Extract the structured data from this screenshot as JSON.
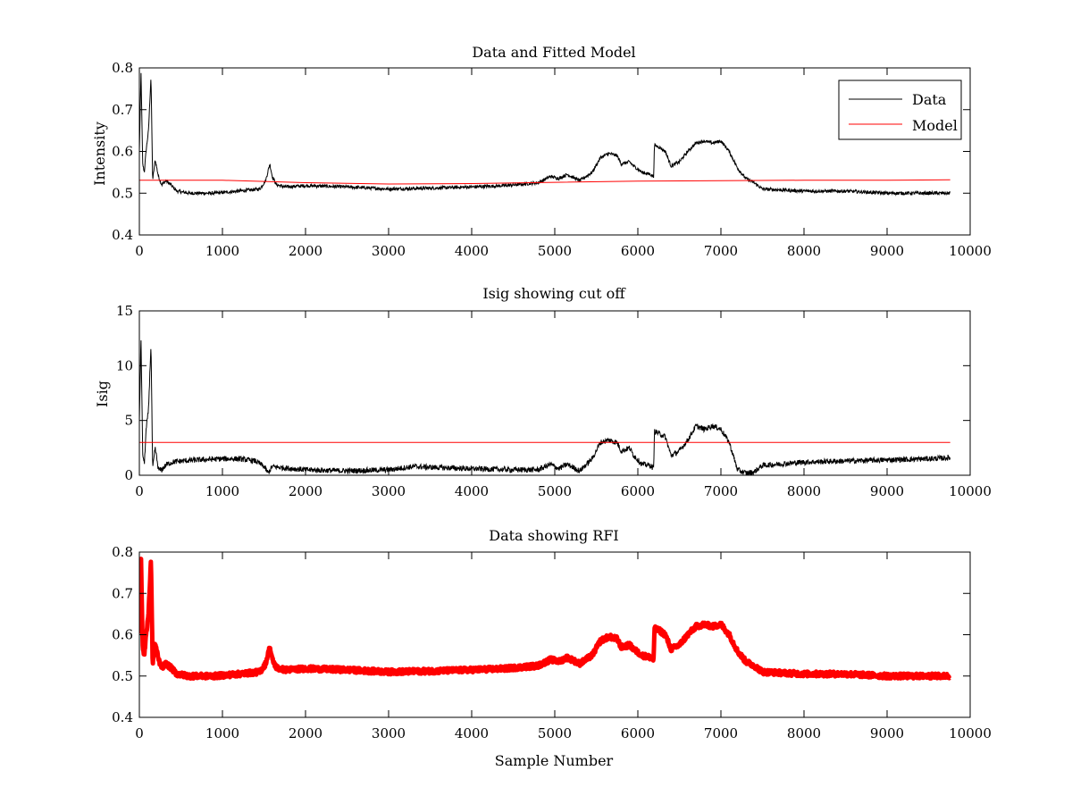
{
  "chart_data": [
    {
      "type": "line",
      "title": "Data and Fitted Model",
      "xlabel": "",
      "ylabel": "Intensity",
      "xlim": [
        0,
        10000
      ],
      "ylim": [
        0.4,
        0.8
      ],
      "xticks": [
        0,
        1000,
        2000,
        3000,
        4000,
        5000,
        6000,
        7000,
        8000,
        9000,
        10000
      ],
      "yticks": [
        0.4,
        0.5,
        0.6,
        0.7,
        0.8
      ],
      "ytick_labels": [
        "0.4",
        "0.5",
        "0.6",
        "0.7",
        "0.8"
      ],
      "legend": {
        "position": "top-right",
        "entries": [
          "Data",
          "Model"
        ]
      },
      "series": [
        {
          "name": "Data",
          "color": "#000000",
          "noise": 0.004,
          "x": [
            0,
            20,
            40,
            60,
            80,
            110,
            140,
            160,
            190,
            230,
            270,
            320,
            380,
            450,
            600,
            900,
            1200,
            1450,
            1520,
            1570,
            1600,
            1650,
            1750,
            2000,
            2500,
            3000,
            3500,
            4000,
            4400,
            4800,
            4950,
            5050,
            5150,
            5300,
            5450,
            5550,
            5650,
            5750,
            5800,
            5900,
            5950,
            6050,
            6150,
            6190,
            6200,
            6260,
            6330,
            6400,
            6500,
            6600,
            6700,
            6800,
            6900,
            7000,
            7100,
            7200,
            7300,
            7400,
            7500,
            8000,
            8500,
            9000,
            9500,
            9760
          ],
          "y": [
            0.6,
            0.79,
            0.57,
            0.55,
            0.6,
            0.65,
            0.78,
            0.53,
            0.58,
            0.54,
            0.52,
            0.53,
            0.52,
            0.505,
            0.5,
            0.5,
            0.505,
            0.51,
            0.53,
            0.57,
            0.54,
            0.52,
            0.515,
            0.518,
            0.515,
            0.51,
            0.512,
            0.515,
            0.518,
            0.525,
            0.54,
            0.535,
            0.545,
            0.53,
            0.55,
            0.585,
            0.595,
            0.59,
            0.57,
            0.575,
            0.565,
            0.55,
            0.545,
            0.54,
            0.615,
            0.61,
            0.6,
            0.565,
            0.575,
            0.6,
            0.62,
            0.625,
            0.62,
            0.625,
            0.6,
            0.56,
            0.535,
            0.525,
            0.51,
            0.505,
            0.505,
            0.5,
            0.5,
            0.5
          ]
        },
        {
          "name": "Model",
          "color": "#ff0000",
          "noise": 0,
          "x": [
            0,
            1000,
            2000,
            3000,
            4000,
            5000,
            6000,
            7000,
            8000,
            9000,
            9760
          ],
          "y": [
            0.531,
            0.531,
            0.525,
            0.522,
            0.523,
            0.526,
            0.529,
            0.53,
            0.531,
            0.531,
            0.532
          ]
        }
      ]
    },
    {
      "type": "line",
      "title": "Isig showing cut off",
      "xlabel": "",
      "ylabel": "Isig",
      "xlim": [
        0,
        10000
      ],
      "ylim": [
        0,
        15
      ],
      "xticks": [
        0,
        1000,
        2000,
        3000,
        4000,
        5000,
        6000,
        7000,
        8000,
        9000,
        10000
      ],
      "yticks": [
        0,
        5,
        10,
        15
      ],
      "ytick_labels": [
        "0",
        "5",
        "10",
        "15"
      ],
      "series": [
        {
          "color": "#000000",
          "noise": 0.25,
          "x": [
            0,
            20,
            40,
            60,
            80,
            110,
            140,
            160,
            190,
            230,
            270,
            330,
            400,
            500,
            700,
            1000,
            1200,
            1400,
            1500,
            1550,
            1600,
            1700,
            2000,
            2500,
            3000,
            3300,
            3600,
            4000,
            4500,
            4800,
            4950,
            5050,
            5150,
            5300,
            5450,
            5550,
            5650,
            5750,
            5800,
            5900,
            5950,
            6050,
            6150,
            6190,
            6200,
            6260,
            6330,
            6400,
            6500,
            6600,
            6700,
            6800,
            6900,
            7000,
            7100,
            7200,
            7300,
            7400,
            7500,
            8000,
            8500,
            9000,
            9500,
            9760
          ],
          "y": [
            5,
            12.5,
            2,
            1,
            4,
            6,
            12,
            0.5,
            2.5,
            0.5,
            0.5,
            1,
            1.2,
            1.3,
            1.4,
            1.5,
            1.5,
            1.3,
            0.8,
            0.2,
            0.8,
            0.7,
            0.5,
            0.4,
            0.5,
            0.8,
            0.7,
            0.6,
            0.5,
            0.5,
            1.0,
            0.6,
            1.0,
            0.4,
            1.5,
            3.0,
            3.2,
            3.0,
            2.2,
            2.5,
            1.8,
            1.0,
            0.9,
            0.6,
            4.0,
            3.8,
            3.5,
            1.8,
            2.2,
            3.2,
            4.5,
            4.2,
            4.5,
            4.2,
            3.0,
            0.5,
            0.2,
            0.3,
            0.9,
            1.2,
            1.3,
            1.4,
            1.5,
            1.6
          ]
        },
        {
          "color": "#ff0000",
          "noise": 0,
          "x": [
            0,
            9760
          ],
          "y": [
            3.0,
            3.0
          ]
        }
      ]
    },
    {
      "type": "scatter",
      "title": "Data showing RFI",
      "xlabel": "Sample Number",
      "ylabel": "",
      "xlim": [
        0,
        10000
      ],
      "ylim": [
        0.4,
        0.8
      ],
      "xticks": [
        0,
        1000,
        2000,
        3000,
        4000,
        5000,
        6000,
        7000,
        8000,
        9000,
        10000
      ],
      "yticks": [
        0.4,
        0.5,
        0.6,
        0.7,
        0.8
      ],
      "ytick_labels": [
        "0.4",
        "0.5",
        "0.6",
        "0.7",
        "0.8"
      ],
      "series": [
        {
          "color": "#ff0000",
          "noise": 0.006,
          "marker": "dot",
          "x": [
            0,
            20,
            40,
            60,
            80,
            110,
            140,
            160,
            190,
            230,
            270,
            320,
            380,
            450,
            600,
            900,
            1200,
            1450,
            1520,
            1570,
            1600,
            1650,
            1750,
            2000,
            2500,
            3000,
            3500,
            4000,
            4400,
            4800,
            4950,
            5050,
            5150,
            5300,
            5450,
            5550,
            5650,
            5750,
            5800,
            5900,
            5950,
            6050,
            6150,
            6190,
            6200,
            6260,
            6330,
            6400,
            6500,
            6600,
            6700,
            6800,
            6900,
            7000,
            7100,
            7200,
            7300,
            7400,
            7500,
            8000,
            8500,
            9000,
            9500,
            9760
          ],
          "y": [
            0.6,
            0.79,
            0.57,
            0.55,
            0.6,
            0.65,
            0.78,
            0.53,
            0.58,
            0.54,
            0.52,
            0.53,
            0.52,
            0.505,
            0.5,
            0.5,
            0.505,
            0.51,
            0.53,
            0.57,
            0.54,
            0.52,
            0.515,
            0.518,
            0.515,
            0.51,
            0.512,
            0.515,
            0.518,
            0.525,
            0.54,
            0.535,
            0.545,
            0.53,
            0.55,
            0.585,
            0.595,
            0.59,
            0.57,
            0.575,
            0.565,
            0.55,
            0.545,
            0.54,
            0.615,
            0.61,
            0.6,
            0.565,
            0.575,
            0.6,
            0.62,
            0.625,
            0.62,
            0.625,
            0.6,
            0.56,
            0.535,
            0.525,
            0.51,
            0.505,
            0.505,
            0.5,
            0.5,
            0.5
          ]
        }
      ]
    }
  ]
}
